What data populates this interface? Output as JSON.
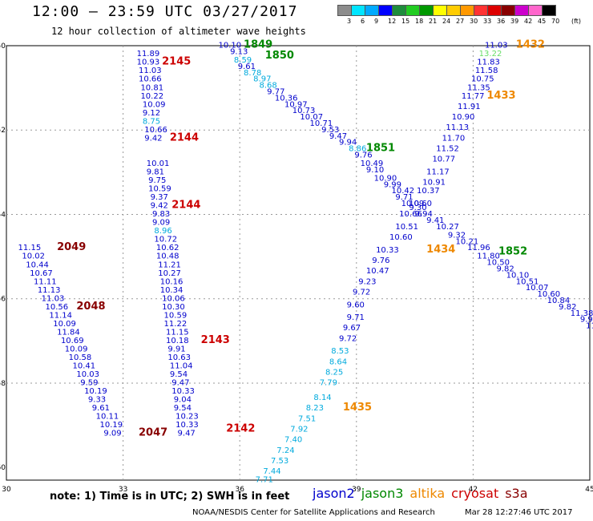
{
  "title": "12:00 — 23:59 UTC 03/27/2017",
  "subtitle": "12 hour collection of altimeter wave heights",
  "legend": {
    "unit": "(ft)",
    "labels": [
      "3",
      "6",
      "9",
      "12",
      "15",
      "18",
      "21",
      "24",
      "27",
      "30",
      "33",
      "36",
      "39",
      "42",
      "45",
      "70"
    ],
    "colors": [
      "#8c8c8c",
      "#00e5ff",
      "#00aaff",
      "#0000ff",
      "#1e8c3c",
      "#22cc22",
      "#009900",
      "#ffff00",
      "#ffcc00",
      "#ff9900",
      "#ff3333",
      "#dd0000",
      "#880000",
      "#cc00cc",
      "#ff66cc",
      "#000000"
    ]
  },
  "axes": {
    "lon_ticks": [
      "30",
      "33",
      "36",
      "39",
      "42",
      "45"
    ],
    "lat_ticks": [
      "-50",
      "-52",
      "-54",
      "-56",
      "-58",
      "-60"
    ]
  },
  "colors": {
    "jason2": "#0000cc",
    "jason3": "#008800",
    "altika": "#ee8800",
    "cryosat": "#cc0000",
    "s3a": "#880000",
    "light": "#00aadd",
    "lightgreen": "#66dd66"
  },
  "note": "note:  1) Time is in UTC;  2) SWH is in feet",
  "satellites": [
    {
      "name": "jason2",
      "color": "#0000cc"
    },
    {
      "name": "jason3",
      "color": "#008800"
    },
    {
      "name": "altika",
      "color": "#ee8800"
    },
    {
      "name": "cryosat",
      "color": "#cc0000"
    },
    {
      "name": "s3a",
      "color": "#880000"
    }
  ],
  "credit": "NOAA/NESDIS Center for Satellite Applications and Research",
  "timestamp": "Mar 28 12:27:46 UTC 2017",
  "tracks": [
    {
      "name": "track-a",
      "color": "#0000cc",
      "points": [
        {
          "lon": 33.35,
          "lat": -50.25,
          "v": "11.89"
        },
        {
          "lon": 33.35,
          "lat": -50.45,
          "v": "10.93"
        },
        {
          "lon": 33.4,
          "lat": -50.65,
          "v": "11.03"
        },
        {
          "lon": 33.4,
          "lat": -50.85,
          "v": "10.66"
        },
        {
          "lon": 33.45,
          "lat": -51.05,
          "v": "10.81"
        },
        {
          "lon": 33.45,
          "lat": -51.25,
          "v": "10.22"
        },
        {
          "lon": 33.5,
          "lat": -51.45,
          "v": "10.09"
        },
        {
          "lon": 33.5,
          "lat": -51.65,
          "v": "9.12"
        },
        {
          "lon": 33.5,
          "lat": -51.85,
          "v": "8.75",
          "c": "#00aadd"
        },
        {
          "lon": 33.55,
          "lat": -52.05,
          "v": "10.66"
        },
        {
          "lon": 33.55,
          "lat": -52.25,
          "v": "9.42"
        }
      ],
      "labels": [
        {
          "lon": 34.0,
          "lat": -50.45,
          "v": "2145",
          "c": "#cc0000"
        },
        {
          "lon": 34.2,
          "lat": -52.25,
          "v": "2144",
          "c": "#cc0000"
        }
      ]
    },
    {
      "name": "track-b",
      "color": "#0000cc",
      "points": [
        {
          "lon": 33.6,
          "lat": -52.85,
          "v": "10.01"
        },
        {
          "lon": 33.6,
          "lat": -53.05,
          "v": "9.81"
        },
        {
          "lon": 33.65,
          "lat": -53.25,
          "v": "9.75"
        },
        {
          "lon": 33.65,
          "lat": -53.45,
          "v": "10.59"
        },
        {
          "lon": 33.7,
          "lat": -53.65,
          "v": "9.37"
        },
        {
          "lon": 33.7,
          "lat": -53.85,
          "v": "9.42"
        },
        {
          "lon": 33.75,
          "lat": -54.05,
          "v": "9.83"
        },
        {
          "lon": 33.75,
          "lat": -54.25,
          "v": "9.09"
        },
        {
          "lon": 33.8,
          "lat": -54.45,
          "v": "8.96",
          "c": "#00aadd"
        },
        {
          "lon": 33.8,
          "lat": -54.65,
          "v": "10.72"
        },
        {
          "lon": 33.85,
          "lat": -54.85,
          "v": "10.62"
        },
        {
          "lon": 33.85,
          "lat": -55.05,
          "v": "10.48"
        },
        {
          "lon": 33.9,
          "lat": -55.25,
          "v": "11.21"
        },
        {
          "lon": 33.9,
          "lat": -55.45,
          "v": "10.27"
        },
        {
          "lon": 33.95,
          "lat": -55.65,
          "v": "10.16"
        },
        {
          "lon": 33.95,
          "lat": -55.85,
          "v": "10.34"
        },
        {
          "lon": 34.0,
          "lat": -56.05,
          "v": "10.06"
        },
        {
          "lon": 34.0,
          "lat": -56.25,
          "v": "10.30"
        },
        {
          "lon": 34.05,
          "lat": -56.45,
          "v": "10.59"
        },
        {
          "lon": 34.05,
          "lat": -56.65,
          "v": "11.22"
        },
        {
          "lon": 34.1,
          "lat": -56.85,
          "v": "11.15"
        },
        {
          "lon": 34.1,
          "lat": -57.05,
          "v": "10.18"
        },
        {
          "lon": 34.15,
          "lat": -57.25,
          "v": "9.91"
        },
        {
          "lon": 34.15,
          "lat": -57.45,
          "v": "10.63"
        },
        {
          "lon": 34.2,
          "lat": -57.65,
          "v": "11.04"
        },
        {
          "lon": 34.2,
          "lat": -57.85,
          "v": "9.54"
        },
        {
          "lon": 34.25,
          "lat": -58.05,
          "v": "9.47"
        },
        {
          "lon": 34.25,
          "lat": -58.25,
          "v": "10.33"
        },
        {
          "lon": 34.3,
          "lat": -58.45,
          "v": "9.04"
        },
        {
          "lon": 34.3,
          "lat": -58.65,
          "v": "9.54"
        },
        {
          "lon": 34.35,
          "lat": -58.85,
          "v": "10.23"
        },
        {
          "lon": 34.35,
          "lat": -59.05,
          "v": "10.33"
        },
        {
          "lon": 34.4,
          "lat": -59.25,
          "v": "9.47"
        }
      ],
      "labels": [
        {
          "lon": 34.25,
          "lat": -53.85,
          "v": "2144",
          "c": "#cc0000"
        },
        {
          "lon": 35.0,
          "lat": -57.05,
          "v": "2143",
          "c": "#cc0000"
        },
        {
          "lon": 35.65,
          "lat": -59.15,
          "v": "2142",
          "c": "#cc0000"
        }
      ]
    },
    {
      "name": "track-c",
      "color": "#0000cc",
      "points": [
        {
          "lon": 30.3,
          "lat": -54.85,
          "v": "11.15"
        },
        {
          "lon": 30.4,
          "lat": -55.05,
          "v": "10.02"
        },
        {
          "lon": 30.5,
          "lat": -55.25,
          "v": "10.44"
        },
        {
          "lon": 30.6,
          "lat": -55.45,
          "v": "10.67"
        },
        {
          "lon": 30.7,
          "lat": -55.65,
          "v": "11.11"
        },
        {
          "lon": 30.8,
          "lat": -55.85,
          "v": "11.13"
        },
        {
          "lon": 30.9,
          "lat": -56.05,
          "v": "11.03"
        },
        {
          "lon": 31.0,
          "lat": -56.25,
          "v": "10.56"
        },
        {
          "lon": 31.1,
          "lat": -56.45,
          "v": "11.14"
        },
        {
          "lon": 31.2,
          "lat": -56.65,
          "v": "10.09"
        },
        {
          "lon": 31.3,
          "lat": -56.85,
          "v": "11.84"
        },
        {
          "lon": 31.4,
          "lat": -57.05,
          "v": "10.69"
        },
        {
          "lon": 31.5,
          "lat": -57.25,
          "v": "10.09"
        },
        {
          "lon": 31.6,
          "lat": -57.45,
          "v": "10.58"
        },
        {
          "lon": 31.7,
          "lat": -57.65,
          "v": "10.41"
        },
        {
          "lon": 31.8,
          "lat": -57.85,
          "v": "10.03"
        },
        {
          "lon": 31.9,
          "lat": -58.05,
          "v": "9.59"
        },
        {
          "lon": 32.0,
          "lat": -58.25,
          "v": "10.19"
        },
        {
          "lon": 32.1,
          "lat": -58.45,
          "v": "9.33"
        },
        {
          "lon": 32.2,
          "lat": -58.65,
          "v": "9.61"
        },
        {
          "lon": 32.3,
          "lat": -58.85,
          "v": "10.11"
        },
        {
          "lon": 32.4,
          "lat": -59.05,
          "v": "10.19"
        },
        {
          "lon": 32.5,
          "lat": -59.25,
          "v": "9.09"
        }
      ],
      "labels": [
        {
          "lon": 31.3,
          "lat": -54.85,
          "v": "2049",
          "c": "#880000"
        },
        {
          "lon": 31.8,
          "lat": -56.25,
          "v": "2048",
          "c": "#880000"
        },
        {
          "lon": 33.4,
          "lat": -59.25,
          "v": "2047",
          "c": "#880000"
        }
      ]
    },
    {
      "name": "track-d",
      "color": "#0000cc",
      "points": [
        {
          "lon": 35.45,
          "lat": -50.05,
          "v": "10.10"
        },
        {
          "lon": 35.75,
          "lat": -50.2,
          "v": "9.13"
        },
        {
          "lon": 35.85,
          "lat": -50.4,
          "v": "8.59",
          "c": "#00aadd"
        },
        {
          "lon": 35.95,
          "lat": -50.55,
          "v": "9.61"
        },
        {
          "lon": 36.1,
          "lat": -50.7,
          "v": "8.78",
          "c": "#00aadd"
        },
        {
          "lon": 36.35,
          "lat": -50.85,
          "v": "8.97",
          "c": "#00aadd"
        },
        {
          "lon": 36.5,
          "lat": -51.0,
          "v": "8.68",
          "c": "#00aadd"
        },
        {
          "lon": 36.7,
          "lat": -51.15,
          "v": "9.77"
        },
        {
          "lon": 36.9,
          "lat": -51.3,
          "v": "10.36"
        },
        {
          "lon": 37.15,
          "lat": -51.45,
          "v": "10.97"
        },
        {
          "lon": 37.35,
          "lat": -51.6,
          "v": "10.73"
        },
        {
          "lon": 37.55,
          "lat": -51.75,
          "v": "10.07"
        },
        {
          "lon": 37.8,
          "lat": -51.9,
          "v": "10.71"
        },
        {
          "lon": 38.1,
          "lat": -52.05,
          "v": "9.53"
        },
        {
          "lon": 38.3,
          "lat": -52.2,
          "v": "9.47"
        },
        {
          "lon": 38.55,
          "lat": -52.35,
          "v": "9.94"
        },
        {
          "lon": 38.8,
          "lat": -52.5,
          "v": "8.86",
          "c": "#00aadd"
        },
        {
          "lon": 38.95,
          "lat": -52.65,
          "v": "9.76"
        },
        {
          "lon": 39.1,
          "lat": -52.85,
          "v": "10.49"
        },
        {
          "lon": 39.25,
          "lat": -53.0,
          "v": "9.10"
        },
        {
          "lon": 39.45,
          "lat": -53.2,
          "v": "10.90"
        },
        {
          "lon": 39.7,
          "lat": -53.35,
          "v": "9.99"
        },
        {
          "lon": 39.9,
          "lat": -53.5,
          "v": "10.42"
        },
        {
          "lon": 40.0,
          "lat": -53.65,
          "v": "9.71"
        },
        {
          "lon": 40.15,
          "lat": -53.8,
          "v": "10.09"
        },
        {
          "lon": 40.35,
          "lat": -53.9,
          "v": "9.30"
        },
        {
          "lon": 40.5,
          "lat": -54.05,
          "v": "9.94"
        },
        {
          "lon": 40.8,
          "lat": -54.2,
          "v": "9.41"
        },
        {
          "lon": 41.05,
          "lat": -54.35,
          "v": "10.27"
        },
        {
          "lon": 41.35,
          "lat": -54.55,
          "v": "9.32"
        },
        {
          "lon": 41.55,
          "lat": -54.7,
          "v": "10.21"
        },
        {
          "lon": 41.85,
          "lat": -54.85,
          "v": "11.96"
        },
        {
          "lon": 42.1,
          "lat": -55.05,
          "v": "11.80"
        },
        {
          "lon": 42.35,
          "lat": -55.2,
          "v": "10.50"
        },
        {
          "lon": 42.6,
          "lat": -55.35,
          "v": "9.82"
        },
        {
          "lon": 42.85,
          "lat": -55.5,
          "v": "10.10"
        },
        {
          "lon": 43.1,
          "lat": -55.65,
          "v": "10.51"
        },
        {
          "lon": 43.35,
          "lat": -55.8,
          "v": "10.07"
        },
        {
          "lon": 43.65,
          "lat": -55.95,
          "v": "10.60"
        },
        {
          "lon": 43.9,
          "lat": -56.1,
          "v": "10.84"
        },
        {
          "lon": 44.2,
          "lat": -56.25,
          "v": "9.82"
        },
        {
          "lon": 44.5,
          "lat": -56.4,
          "v": "11.38"
        },
        {
          "lon": 44.75,
          "lat": -56.55,
          "v": "9.97"
        },
        {
          "lon": 44.9,
          "lat": -56.7,
          "v": "11"
        }
      ],
      "labels": [
        {
          "lon": 36.1,
          "lat": -50.05,
          "v": "1849",
          "c": "#008800"
        },
        {
          "lon": 36.65,
          "lat": -50.3,
          "v": "1850",
          "c": "#008800"
        },
        {
          "lon": 39.25,
          "lat": -52.5,
          "v": "1851",
          "c": "#008800"
        },
        {
          "lon": 42.65,
          "lat": -54.95,
          "v": "1852",
          "c": "#008800"
        }
      ]
    },
    {
      "name": "track-e",
      "color": "#0000cc",
      "points": [
        {
          "lon": 42.3,
          "lat": -50.05,
          "v": "11.03"
        },
        {
          "lon": 42.15,
          "lat": -50.25,
          "v": "13.22",
          "c": "#66dd66"
        },
        {
          "lon": 42.1,
          "lat": -50.45,
          "v": "11.83"
        },
        {
          "lon": 42.05,
          "lat": -50.65,
          "v": "11.58"
        },
        {
          "lon": 41.95,
          "lat": -50.85,
          "v": "10.75"
        },
        {
          "lon": 41.85,
          "lat": -51.05,
          "v": "11.35"
        },
        {
          "lon": 41.7,
          "lat": -51.25,
          "v": "11.77"
        },
        {
          "lon": 41.6,
          "lat": -51.5,
          "v": "11.91"
        },
        {
          "lon": 41.45,
          "lat": -51.75,
          "v": "10.90"
        },
        {
          "lon": 41.3,
          "lat": -52.0,
          "v": "11.13"
        },
        {
          "lon": 41.2,
          "lat": -52.25,
          "v": "11.70"
        },
        {
          "lon": 41.05,
          "lat": -52.5,
          "v": "11.52"
        },
        {
          "lon": 40.95,
          "lat": -52.75,
          "v": "10.77"
        },
        {
          "lon": 40.8,
          "lat": -53.05,
          "v": "11.17"
        },
        {
          "lon": 40.7,
          "lat": -53.3,
          "v": "10.91"
        },
        {
          "lon": 40.55,
          "lat": -53.5,
          "v": "10.37"
        },
        {
          "lon": 40.35,
          "lat": -53.8,
          "v": "10.60"
        },
        {
          "lon": 40.1,
          "lat": -54.05,
          "v": "10.66"
        },
        {
          "lon": 40.0,
          "lat": -54.35,
          "v": "10.51"
        },
        {
          "lon": 39.85,
          "lat": -54.6,
          "v": "10.60"
        },
        {
          "lon": 39.5,
          "lat": -54.9,
          "v": "10.33"
        },
        {
          "lon": 39.4,
          "lat": -55.15,
          "v": "9.76"
        },
        {
          "lon": 39.25,
          "lat": -55.4,
          "v": "10.47"
        },
        {
          "lon": 39.05,
          "lat": -55.65,
          "v": "9.23"
        },
        {
          "lon": 38.9,
          "lat": -55.9,
          "v": "9.72"
        },
        {
          "lon": 38.75,
          "lat": -56.2,
          "v": "9.60"
        },
        {
          "lon": 38.75,
          "lat": -56.5,
          "v": "9.71"
        },
        {
          "lon": 38.65,
          "lat": -56.75,
          "v": "9.67"
        },
        {
          "lon": 38.55,
          "lat": -57.0,
          "v": "9.72"
        },
        {
          "lon": 38.35,
          "lat": -57.3,
          "v": "8.53",
          "c": "#00aadd"
        },
        {
          "lon": 38.3,
          "lat": -57.55,
          "v": "8.64",
          "c": "#00aadd"
        },
        {
          "lon": 38.2,
          "lat": -57.8,
          "v": "8.25",
          "c": "#00aadd"
        },
        {
          "lon": 38.05,
          "lat": -58.05,
          "v": "7.79",
          "c": "#00aadd"
        },
        {
          "lon": 37.9,
          "lat": -58.4,
          "v": "8.14",
          "c": "#00aadd"
        },
        {
          "lon": 37.7,
          "lat": -58.65,
          "v": "8.23",
          "c": "#00aadd"
        },
        {
          "lon": 37.5,
          "lat": -58.9,
          "v": "7.51",
          "c": "#00aadd"
        },
        {
          "lon": 37.3,
          "lat": -59.15,
          "v": "7.92",
          "c": "#00aadd"
        },
        {
          "lon": 37.15,
          "lat": -59.4,
          "v": "7.40",
          "c": "#00aadd"
        },
        {
          "lon": 36.95,
          "lat": -59.65,
          "v": "7.24",
          "c": "#00aadd"
        },
        {
          "lon": 36.8,
          "lat": -59.9,
          "v": "7.53",
          "c": "#00aadd"
        },
        {
          "lon": 36.6,
          "lat": -60.15,
          "v": "7.44",
          "c": "#00aadd"
        },
        {
          "lon": 36.4,
          "lat": -60.35,
          "v": "7.71",
          "c": "#00aadd"
        }
      ],
      "labels": [
        {
          "lon": 43.1,
          "lat": -50.05,
          "v": "1432",
          "c": "#ee8800"
        },
        {
          "lon": 42.35,
          "lat": -51.25,
          "v": "1433",
          "c": "#ee8800"
        },
        {
          "lon": 40.8,
          "lat": -54.9,
          "v": "1434",
          "c": "#ee8800"
        },
        {
          "lon": 38.65,
          "lat": -58.65,
          "v": "1435",
          "c": "#ee8800"
        }
      ]
    }
  ]
}
